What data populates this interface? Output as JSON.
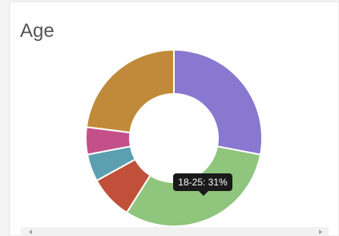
{
  "chart_data": {
    "type": "donut",
    "title": "Age",
    "series": [
      {
        "values": [
          28,
          31,
          8,
          5,
          5,
          23
        ],
        "colors": [
          "#8878d0",
          "#8fc57c",
          "#c0503a",
          "#5b9fb0",
          "#c4508a",
          "#c08a3a"
        ]
      }
    ],
    "tooltip": "18-25: 31%"
  }
}
